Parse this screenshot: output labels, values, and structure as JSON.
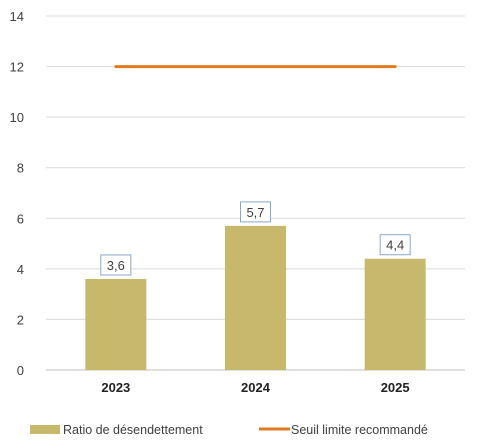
{
  "colors": {
    "bar": "#c8b86b",
    "threshold_line": "#e07b1f",
    "grid": "#d9d9d9",
    "axis": "#bfbfbf",
    "text": "#404040",
    "label_border": "#8aa7c9"
  },
  "chart_data": {
    "type": "bar",
    "categories": [
      "2023",
      "2024",
      "2025"
    ],
    "series": [
      {
        "name": "Ratio de désendettement",
        "type": "bar",
        "values": [
          3.6,
          5.7,
          4.4
        ],
        "data_labels": [
          "3,6",
          "5,7",
          "4,4"
        ]
      },
      {
        "name": "Seuil limite recommandé",
        "type": "line",
        "values": [
          12,
          12,
          12
        ]
      }
    ],
    "ylim": [
      0,
      14
    ],
    "yticks": [
      0,
      2,
      4,
      6,
      8,
      10,
      12,
      14
    ],
    "ytick_labels": [
      "0",
      "2",
      "4",
      "6",
      "8",
      "10",
      "12",
      "14"
    ],
    "grid": true,
    "legend_position": "bottom",
    "title": "",
    "xlabel": "",
    "ylabel": ""
  }
}
